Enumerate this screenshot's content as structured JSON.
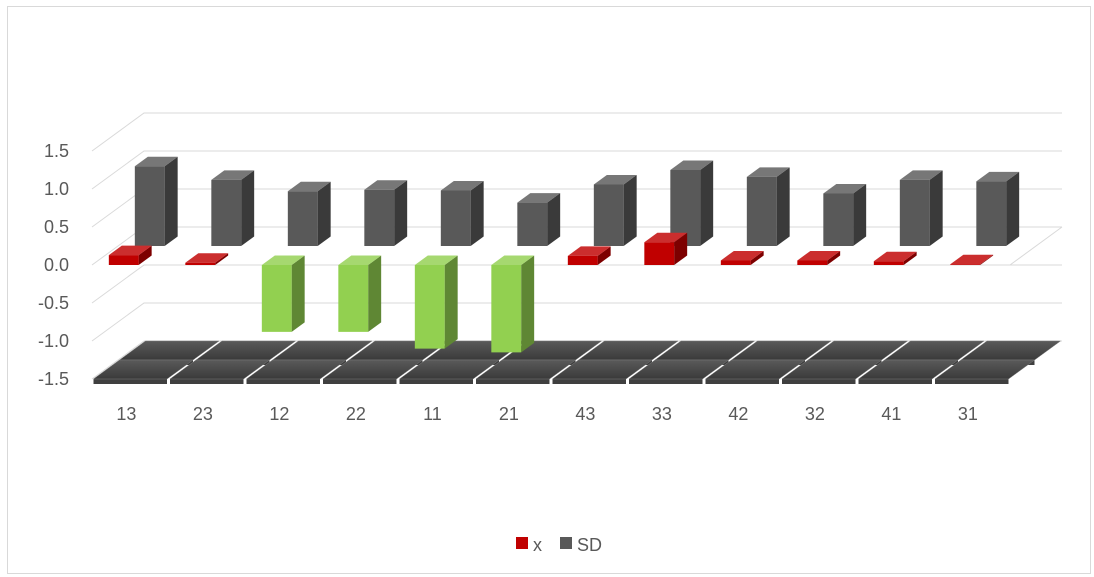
{
  "chart_data": {
    "type": "bar",
    "subtype": "3d-column",
    "categories": [
      "13",
      "23",
      "12",
      "22",
      "11",
      "21",
      "43",
      "33",
      "42",
      "32",
      "41",
      "31"
    ],
    "series": [
      {
        "name": "x",
        "values": [
          0.13,
          0.03,
          -0.88,
          -0.88,
          -1.1,
          -1.15,
          0.12,
          0.3,
          0.06,
          0.06,
          0.05,
          0.01
        ]
      },
      {
        "name": "SD",
        "values": [
          1.05,
          0.87,
          0.72,
          0.74,
          0.73,
          0.57,
          0.81,
          1.0,
          0.91,
          0.69,
          0.87,
          0.85
        ]
      }
    ],
    "negative_color": "#92d050",
    "colors": {
      "x": "#c00000",
      "SD": "#595959"
    },
    "yticks": [
      "1.5",
      "1.0",
      "0.5",
      "0.0",
      "-0.5",
      "-1.0",
      "-1.5"
    ],
    "ylim": [
      -1.5,
      1.5
    ],
    "grid": true,
    "legend": "bottom",
    "title": "",
    "xlabel": "",
    "ylabel": ""
  }
}
